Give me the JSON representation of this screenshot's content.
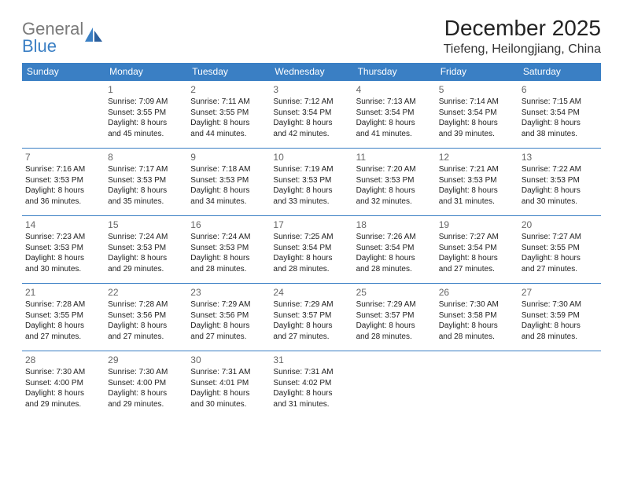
{
  "brand": {
    "part1": "General",
    "part2": "Blue"
  },
  "title": "December 2025",
  "location": "Tiefeng, Heilongjiang, China",
  "colors": {
    "accent": "#3a7fc4",
    "gray_text": "#7a7a7a",
    "text": "#222222",
    "daynum": "#666666",
    "background": "#ffffff"
  },
  "weekdays": [
    "Sunday",
    "Monday",
    "Tuesday",
    "Wednesday",
    "Thursday",
    "Friday",
    "Saturday"
  ],
  "calendar": {
    "type": "table",
    "columns": 7,
    "rows": 5,
    "cell_fontsize": 10,
    "daynum_fontsize": 12,
    "header_fontsize": 12,
    "row_border_color": "#3a7fc4",
    "header_bg": "#3a7fc4",
    "header_fg": "#ffffff"
  },
  "weeks": [
    [
      null,
      {
        "n": "1",
        "sr": "Sunrise: 7:09 AM",
        "ss": "Sunset: 3:55 PM",
        "d1": "Daylight: 8 hours",
        "d2": "and 45 minutes."
      },
      {
        "n": "2",
        "sr": "Sunrise: 7:11 AM",
        "ss": "Sunset: 3:55 PM",
        "d1": "Daylight: 8 hours",
        "d2": "and 44 minutes."
      },
      {
        "n": "3",
        "sr": "Sunrise: 7:12 AM",
        "ss": "Sunset: 3:54 PM",
        "d1": "Daylight: 8 hours",
        "d2": "and 42 minutes."
      },
      {
        "n": "4",
        "sr": "Sunrise: 7:13 AM",
        "ss": "Sunset: 3:54 PM",
        "d1": "Daylight: 8 hours",
        "d2": "and 41 minutes."
      },
      {
        "n": "5",
        "sr": "Sunrise: 7:14 AM",
        "ss": "Sunset: 3:54 PM",
        "d1": "Daylight: 8 hours",
        "d2": "and 39 minutes."
      },
      {
        "n": "6",
        "sr": "Sunrise: 7:15 AM",
        "ss": "Sunset: 3:54 PM",
        "d1": "Daylight: 8 hours",
        "d2": "and 38 minutes."
      }
    ],
    [
      {
        "n": "7",
        "sr": "Sunrise: 7:16 AM",
        "ss": "Sunset: 3:53 PM",
        "d1": "Daylight: 8 hours",
        "d2": "and 36 minutes."
      },
      {
        "n": "8",
        "sr": "Sunrise: 7:17 AM",
        "ss": "Sunset: 3:53 PM",
        "d1": "Daylight: 8 hours",
        "d2": "and 35 minutes."
      },
      {
        "n": "9",
        "sr": "Sunrise: 7:18 AM",
        "ss": "Sunset: 3:53 PM",
        "d1": "Daylight: 8 hours",
        "d2": "and 34 minutes."
      },
      {
        "n": "10",
        "sr": "Sunrise: 7:19 AM",
        "ss": "Sunset: 3:53 PM",
        "d1": "Daylight: 8 hours",
        "d2": "and 33 minutes."
      },
      {
        "n": "11",
        "sr": "Sunrise: 7:20 AM",
        "ss": "Sunset: 3:53 PM",
        "d1": "Daylight: 8 hours",
        "d2": "and 32 minutes."
      },
      {
        "n": "12",
        "sr": "Sunrise: 7:21 AM",
        "ss": "Sunset: 3:53 PM",
        "d1": "Daylight: 8 hours",
        "d2": "and 31 minutes."
      },
      {
        "n": "13",
        "sr": "Sunrise: 7:22 AM",
        "ss": "Sunset: 3:53 PM",
        "d1": "Daylight: 8 hours",
        "d2": "and 30 minutes."
      }
    ],
    [
      {
        "n": "14",
        "sr": "Sunrise: 7:23 AM",
        "ss": "Sunset: 3:53 PM",
        "d1": "Daylight: 8 hours",
        "d2": "and 30 minutes."
      },
      {
        "n": "15",
        "sr": "Sunrise: 7:24 AM",
        "ss": "Sunset: 3:53 PM",
        "d1": "Daylight: 8 hours",
        "d2": "and 29 minutes."
      },
      {
        "n": "16",
        "sr": "Sunrise: 7:24 AM",
        "ss": "Sunset: 3:53 PM",
        "d1": "Daylight: 8 hours",
        "d2": "and 28 minutes."
      },
      {
        "n": "17",
        "sr": "Sunrise: 7:25 AM",
        "ss": "Sunset: 3:54 PM",
        "d1": "Daylight: 8 hours",
        "d2": "and 28 minutes."
      },
      {
        "n": "18",
        "sr": "Sunrise: 7:26 AM",
        "ss": "Sunset: 3:54 PM",
        "d1": "Daylight: 8 hours",
        "d2": "and 28 minutes."
      },
      {
        "n": "19",
        "sr": "Sunrise: 7:27 AM",
        "ss": "Sunset: 3:54 PM",
        "d1": "Daylight: 8 hours",
        "d2": "and 27 minutes."
      },
      {
        "n": "20",
        "sr": "Sunrise: 7:27 AM",
        "ss": "Sunset: 3:55 PM",
        "d1": "Daylight: 8 hours",
        "d2": "and 27 minutes."
      }
    ],
    [
      {
        "n": "21",
        "sr": "Sunrise: 7:28 AM",
        "ss": "Sunset: 3:55 PM",
        "d1": "Daylight: 8 hours",
        "d2": "and 27 minutes."
      },
      {
        "n": "22",
        "sr": "Sunrise: 7:28 AM",
        "ss": "Sunset: 3:56 PM",
        "d1": "Daylight: 8 hours",
        "d2": "and 27 minutes."
      },
      {
        "n": "23",
        "sr": "Sunrise: 7:29 AM",
        "ss": "Sunset: 3:56 PM",
        "d1": "Daylight: 8 hours",
        "d2": "and 27 minutes."
      },
      {
        "n": "24",
        "sr": "Sunrise: 7:29 AM",
        "ss": "Sunset: 3:57 PM",
        "d1": "Daylight: 8 hours",
        "d2": "and 27 minutes."
      },
      {
        "n": "25",
        "sr": "Sunrise: 7:29 AM",
        "ss": "Sunset: 3:57 PM",
        "d1": "Daylight: 8 hours",
        "d2": "and 28 minutes."
      },
      {
        "n": "26",
        "sr": "Sunrise: 7:30 AM",
        "ss": "Sunset: 3:58 PM",
        "d1": "Daylight: 8 hours",
        "d2": "and 28 minutes."
      },
      {
        "n": "27",
        "sr": "Sunrise: 7:30 AM",
        "ss": "Sunset: 3:59 PM",
        "d1": "Daylight: 8 hours",
        "d2": "and 28 minutes."
      }
    ],
    [
      {
        "n": "28",
        "sr": "Sunrise: 7:30 AM",
        "ss": "Sunset: 4:00 PM",
        "d1": "Daylight: 8 hours",
        "d2": "and 29 minutes."
      },
      {
        "n": "29",
        "sr": "Sunrise: 7:30 AM",
        "ss": "Sunset: 4:00 PM",
        "d1": "Daylight: 8 hours",
        "d2": "and 29 minutes."
      },
      {
        "n": "30",
        "sr": "Sunrise: 7:31 AM",
        "ss": "Sunset: 4:01 PM",
        "d1": "Daylight: 8 hours",
        "d2": "and 30 minutes."
      },
      {
        "n": "31",
        "sr": "Sunrise: 7:31 AM",
        "ss": "Sunset: 4:02 PM",
        "d1": "Daylight: 8 hours",
        "d2": "and 31 minutes."
      },
      null,
      null,
      null
    ]
  ]
}
